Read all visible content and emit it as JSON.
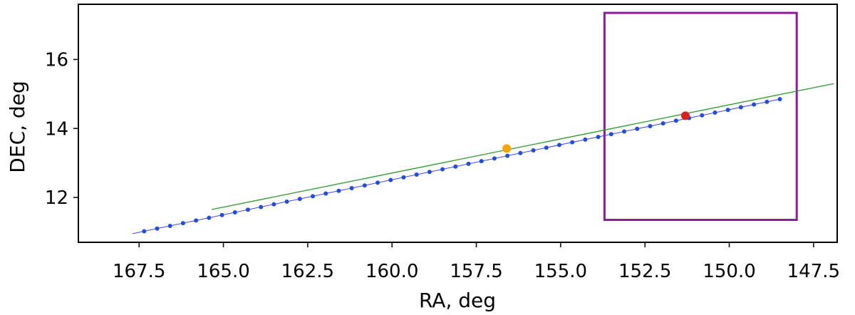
{
  "chart_data": {
    "type": "line",
    "title": "",
    "xlabel": "RA, deg",
    "ylabel": "DEC, deg",
    "x_inverted": true,
    "xlim": [
      169.3,
      146.8
    ],
    "ylim": [
      10.7,
      17.6
    ],
    "x_ticks": [
      167.5,
      165.0,
      162.5,
      160.0,
      157.5,
      155.0,
      152.5,
      150.0,
      147.5
    ],
    "x_tick_labels": [
      "167.5",
      "165.0",
      "162.5",
      "160.0",
      "157.5",
      "155.0",
      "152.5",
      "150.0",
      "147.5"
    ],
    "y_ticks": [
      12,
      14,
      16
    ],
    "y_tick_labels": [
      "12",
      "14",
      "16"
    ],
    "grid": false,
    "legend": "none",
    "series": [
      {
        "kind": "line-with-markers",
        "color": "#1f4fd6",
        "line_color": "#4040ff",
        "start": [
          167.35,
          11.02
        ],
        "end": [
          148.5,
          14.85
        ],
        "n_points": 50
      },
      {
        "kind": "line",
        "color": "#2a9a2a",
        "points": [
          [
            165.35,
            11.65
          ],
          [
            146.9,
            15.3
          ]
        ]
      }
    ],
    "markers": [
      {
        "name": "orange-point",
        "x": 156.6,
        "y": 13.42,
        "color": "#f5a30a"
      },
      {
        "name": "red-point",
        "x": 151.3,
        "y": 14.37,
        "color": "#dd2020"
      }
    ],
    "rectangle": {
      "x": [
        153.7,
        148.0
      ],
      "y": [
        11.35,
        17.35
      ],
      "color": "#8e1a9a"
    }
  }
}
